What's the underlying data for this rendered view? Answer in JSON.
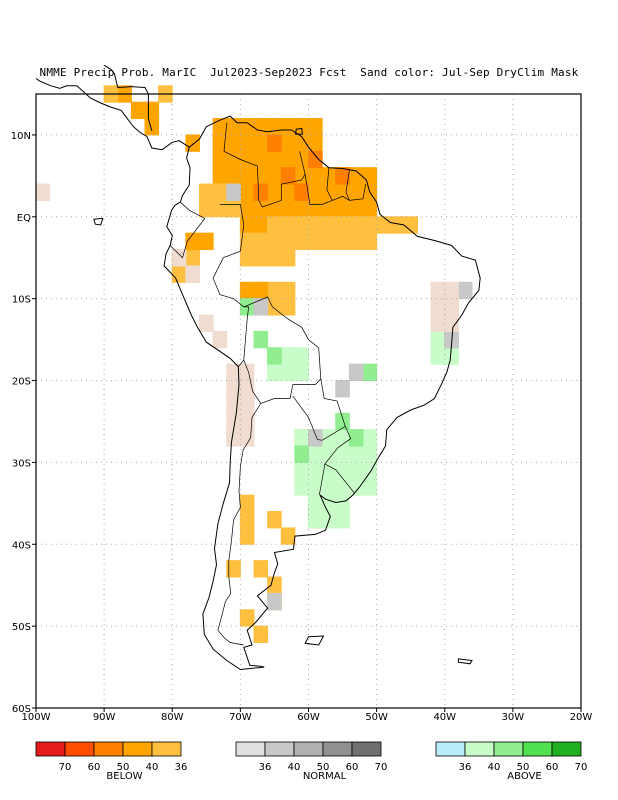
{
  "title": "NMME Precip Prob. MarIC  Jul2023-Sep2023 Fcst  Sand color: Jul-Sep DryClim Mask",
  "map": {
    "lon_range": [
      -100,
      -20
    ],
    "lat_range": [
      -60,
      15
    ],
    "x_ticks": [
      {
        "lon": -100,
        "label": "100W"
      },
      {
        "lon": -90,
        "label": "90W"
      },
      {
        "lon": -80,
        "label": "80W"
      },
      {
        "lon": -70,
        "label": "70W"
      },
      {
        "lon": -60,
        "label": "60W"
      },
      {
        "lon": -50,
        "label": "50W"
      },
      {
        "lon": -40,
        "label": "40W"
      },
      {
        "lon": -30,
        "label": "30W"
      },
      {
        "lon": -20,
        "label": "20W"
      }
    ],
    "y_ticks": [
      {
        "lat": 10,
        "label": "10N"
      },
      {
        "lat": 0,
        "label": "EQ"
      },
      {
        "lat": -10,
        "label": "10S"
      },
      {
        "lat": -20,
        "label": "20S"
      },
      {
        "lat": -30,
        "label": "30S"
      },
      {
        "lat": -40,
        "label": "40S"
      },
      {
        "lat": -50,
        "label": "50S"
      },
      {
        "lat": -60,
        "label": "60S"
      }
    ],
    "colors": {
      "below": [
        "#e41a1c",
        "#ff4d00",
        "#ff7f00",
        "#ffa500",
        "#ffc040"
      ],
      "normal": [
        "#e0e0e0",
        "#c8c8c8",
        "#b0b0b0",
        "#909090",
        "#707070"
      ],
      "above": [
        "#b8ecf8",
        "#c8fcc8",
        "#90ee90",
        "#50e050",
        "#20b020"
      ],
      "dry_mask": "#f0dcd0",
      "coast": "#000000"
    }
  },
  "legend": {
    "below": {
      "name": "BELOW",
      "labels": [
        "70",
        "60",
        "50",
        "40",
        "36"
      ]
    },
    "normal": {
      "name": "NORMAL",
      "labels": [
        "36",
        "40",
        "50",
        "60",
        "70"
      ]
    },
    "above": {
      "name": "ABOVE",
      "labels": [
        "36",
        "40",
        "50",
        "60",
        "70"
      ]
    }
  }
}
